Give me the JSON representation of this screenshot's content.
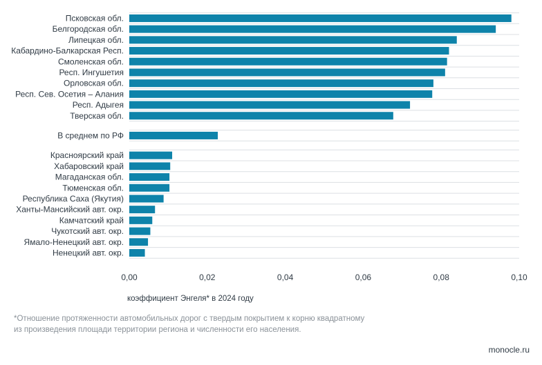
{
  "chart_data": {
    "type": "bar",
    "orientation": "horizontal",
    "categories": [
      "Псковская обл.",
      "Белгородская обл.",
      "Липецкая обл.",
      "Кабардино-Балкарская Респ.",
      "Смоленская обл.",
      "Респ. Ингушетия",
      "Орловская обл.",
      "Респ. Сев. Осетия – Алания",
      "Респ. Адыгея",
      "Тверская обл.",
      "В среднем по РФ",
      "Красноярский край",
      "Хабаровский край",
      "Магаданская обл.",
      "Тюменская обл.",
      "Республика Саха (Якутия)",
      "Ханты-Мансийский авт. окр.",
      "Камчатский край",
      "Чукотский авт. окр.",
      "Ямало-Ненецкий авт. окр.",
      "Ненецкий авт. окр."
    ],
    "values": [
      0.098,
      0.094,
      0.084,
      0.082,
      0.0815,
      0.081,
      0.078,
      0.0777,
      0.072,
      0.0677,
      0.0227,
      0.011,
      0.0105,
      0.0103,
      0.0103,
      0.0088,
      0.0066,
      0.0059,
      0.0054,
      0.0048,
      0.004
    ],
    "groups": [
      [
        0,
        9
      ],
      [
        10,
        10
      ],
      [
        11,
        20
      ]
    ],
    "xlim": [
      0,
      0.1
    ],
    "xticks": [
      "0,00",
      "0,02",
      "0,04",
      "0,06",
      "0,08",
      "0,10"
    ],
    "xlabel": "коэффициент Энгеля* в 2024 году",
    "bar_color": "#0e83aa",
    "grid_color": "#dcdfe3"
  },
  "footnote": {
    "line1": "*Отношение протяженности автомобильных дорог с твердым покрытием к корню квадратному",
    "line2": "из произведения площади территории региона и численности его населения."
  },
  "brand": "monocle.ru"
}
